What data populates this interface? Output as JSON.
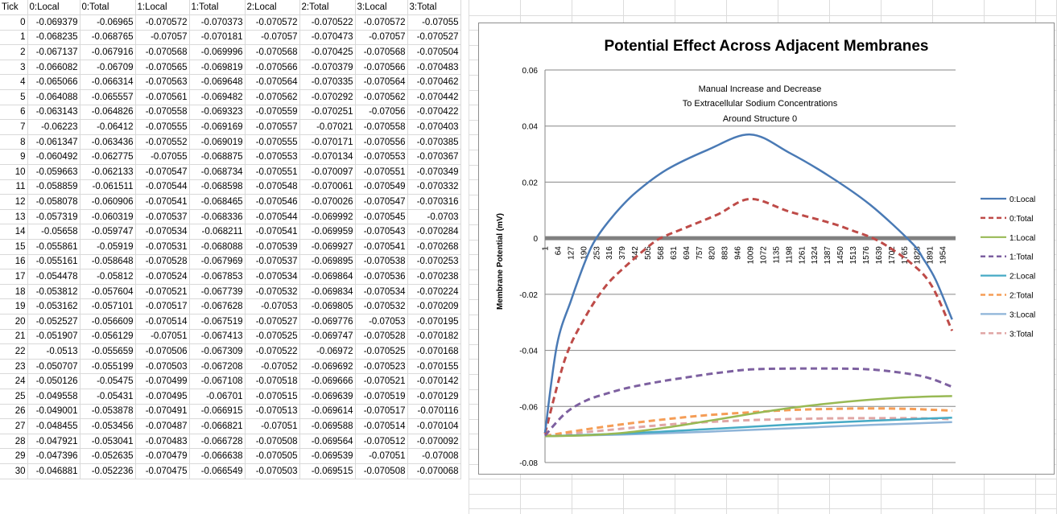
{
  "sheet": {
    "headers": [
      "Tick",
      "0:Local",
      "0:Total",
      "1:Local",
      "1:Total",
      "2:Local",
      "2:Total",
      "3:Local",
      "3:Total"
    ],
    "rows": [
      [
        "0",
        "-0.069379",
        "-0.06965",
        "-0.070572",
        "-0.070373",
        "-0.070572",
        "-0.070522",
        "-0.070572",
        "-0.07055"
      ],
      [
        "1",
        "-0.068235",
        "-0.068765",
        "-0.07057",
        "-0.070181",
        "-0.07057",
        "-0.070473",
        "-0.07057",
        "-0.070527"
      ],
      [
        "2",
        "-0.067137",
        "-0.067916",
        "-0.070568",
        "-0.069996",
        "-0.070568",
        "-0.070425",
        "-0.070568",
        "-0.070504"
      ],
      [
        "3",
        "-0.066082",
        "-0.06709",
        "-0.070565",
        "-0.069819",
        "-0.070566",
        "-0.070379",
        "-0.070566",
        "-0.070483"
      ],
      [
        "4",
        "-0.065066",
        "-0.066314",
        "-0.070563",
        "-0.069648",
        "-0.070564",
        "-0.070335",
        "-0.070564",
        "-0.070462"
      ],
      [
        "5",
        "-0.064088",
        "-0.065557",
        "-0.070561",
        "-0.069482",
        "-0.070562",
        "-0.070292",
        "-0.070562",
        "-0.070442"
      ],
      [
        "6",
        "-0.063143",
        "-0.064826",
        "-0.070558",
        "-0.069323",
        "-0.070559",
        "-0.070251",
        "-0.07056",
        "-0.070422"
      ],
      [
        "7",
        "-0.06223",
        "-0.06412",
        "-0.070555",
        "-0.069169",
        "-0.070557",
        "-0.07021",
        "-0.070558",
        "-0.070403"
      ],
      [
        "8",
        "-0.061347",
        "-0.063436",
        "-0.070552",
        "-0.069019",
        "-0.070555",
        "-0.070171",
        "-0.070556",
        "-0.070385"
      ],
      [
        "9",
        "-0.060492",
        "-0.062775",
        "-0.07055",
        "-0.068875",
        "-0.070553",
        "-0.070134",
        "-0.070553",
        "-0.070367"
      ],
      [
        "10",
        "-0.059663",
        "-0.062133",
        "-0.070547",
        "-0.068734",
        "-0.070551",
        "-0.070097",
        "-0.070551",
        "-0.070349"
      ],
      [
        "11",
        "-0.058859",
        "-0.061511",
        "-0.070544",
        "-0.068598",
        "-0.070548",
        "-0.070061",
        "-0.070549",
        "-0.070332"
      ],
      [
        "12",
        "-0.058078",
        "-0.060906",
        "-0.070541",
        "-0.068465",
        "-0.070546",
        "-0.070026",
        "-0.070547",
        "-0.070316"
      ],
      [
        "13",
        "-0.057319",
        "-0.060319",
        "-0.070537",
        "-0.068336",
        "-0.070544",
        "-0.069992",
        "-0.070545",
        "-0.0703"
      ],
      [
        "14",
        "-0.05658",
        "-0.059747",
        "-0.070534",
        "-0.068211",
        "-0.070541",
        "-0.069959",
        "-0.070543",
        "-0.070284"
      ],
      [
        "15",
        "-0.055861",
        "-0.05919",
        "-0.070531",
        "-0.068088",
        "-0.070539",
        "-0.069927",
        "-0.070541",
        "-0.070268"
      ],
      [
        "16",
        "-0.055161",
        "-0.058648",
        "-0.070528",
        "-0.067969",
        "-0.070537",
        "-0.069895",
        "-0.070538",
        "-0.070253"
      ],
      [
        "17",
        "-0.054478",
        "-0.05812",
        "-0.070524",
        "-0.067853",
        "-0.070534",
        "-0.069864",
        "-0.070536",
        "-0.070238"
      ],
      [
        "18",
        "-0.053812",
        "-0.057604",
        "-0.070521",
        "-0.067739",
        "-0.070532",
        "-0.069834",
        "-0.070534",
        "-0.070224"
      ],
      [
        "19",
        "-0.053162",
        "-0.057101",
        "-0.070517",
        "-0.067628",
        "-0.07053",
        "-0.069805",
        "-0.070532",
        "-0.070209"
      ],
      [
        "20",
        "-0.052527",
        "-0.056609",
        "-0.070514",
        "-0.067519",
        "-0.070527",
        "-0.069776",
        "-0.07053",
        "-0.070195"
      ],
      [
        "21",
        "-0.051907",
        "-0.056129",
        "-0.07051",
        "-0.067413",
        "-0.070525",
        "-0.069747",
        "-0.070528",
        "-0.070182"
      ],
      [
        "22",
        "-0.0513",
        "-0.055659",
        "-0.070506",
        "-0.067309",
        "-0.070522",
        "-0.06972",
        "-0.070525",
        "-0.070168"
      ],
      [
        "23",
        "-0.050707",
        "-0.055199",
        "-0.070503",
        "-0.067208",
        "-0.07052",
        "-0.069692",
        "-0.070523",
        "-0.070155"
      ],
      [
        "24",
        "-0.050126",
        "-0.05475",
        "-0.070499",
        "-0.067108",
        "-0.070518",
        "-0.069666",
        "-0.070521",
        "-0.070142"
      ],
      [
        "25",
        "-0.049558",
        "-0.05431",
        "-0.070495",
        "-0.06701",
        "-0.070515",
        "-0.069639",
        "-0.070519",
        "-0.070129"
      ],
      [
        "26",
        "-0.049001",
        "-0.053878",
        "-0.070491",
        "-0.066915",
        "-0.070513",
        "-0.069614",
        "-0.070517",
        "-0.070116"
      ],
      [
        "27",
        "-0.048455",
        "-0.053456",
        "-0.070487",
        "-0.066821",
        "-0.07051",
        "-0.069588",
        "-0.070514",
        "-0.070104"
      ],
      [
        "28",
        "-0.047921",
        "-0.053041",
        "-0.070483",
        "-0.066728",
        "-0.070508",
        "-0.069564",
        "-0.070512",
        "-0.070092"
      ],
      [
        "29",
        "-0.047396",
        "-0.052635",
        "-0.070479",
        "-0.066638",
        "-0.070505",
        "-0.069539",
        "-0.07051",
        "-0.07008"
      ],
      [
        "30",
        "-0.046881",
        "-0.052236",
        "-0.070475",
        "-0.066549",
        "-0.070503",
        "-0.069515",
        "-0.070508",
        "-0.070068"
      ]
    ]
  },
  "chart_data": {
    "type": "line",
    "title": "Potential Effect Across Adjacent Membranes",
    "annotation": [
      "Manual Increase and Decrease",
      "To Extracellular Sodium Concentrations",
      "Around Structure 0"
    ],
    "ylabel": "Membrane Potential (mV)",
    "xlabel": "",
    "ylim": [
      -0.08,
      0.06
    ],
    "yticks": [
      "0.06",
      "0.04",
      "0.02",
      "0",
      "-0.02",
      "-0.04",
      "-0.06",
      "-0.08"
    ],
    "xlim": [
      1,
      2017
    ],
    "xtick_labels": [
      "1",
      "64",
      "127",
      "190",
      "253",
      "316",
      "379",
      "442",
      "505",
      "568",
      "631",
      "694",
      "757",
      "820",
      "883",
      "946",
      "1009",
      "1072",
      "1135",
      "1198",
      "1261",
      "1324",
      "1387",
      "1450",
      "1513",
      "1576",
      "1639",
      "1702",
      "1765",
      "1828",
      "1891",
      "1954"
    ],
    "gridlines": "horizontal",
    "legend_position": "right",
    "series": [
      {
        "name": "0:Local",
        "color": "#4a7ab5",
        "dash": "solid",
        "x": [
          1,
          60,
          130,
          200,
          253,
          350,
          450,
          600,
          800,
          1009,
          1200,
          1400,
          1600,
          1800,
          1860,
          1920,
          2000
        ],
        "y": [
          -0.0694,
          -0.038,
          -0.022,
          -0.008,
          0.0,
          0.0092,
          0.0165,
          0.0245,
          0.0315,
          0.037,
          0.0305,
          0.022,
          0.0118,
          -0.0015,
          -0.0075,
          -0.015,
          -0.029
        ]
      },
      {
        "name": "0:Total",
        "color": "#be4b48",
        "dash": "dashed",
        "x": [
          1,
          100,
          200,
          300,
          400,
          500,
          568,
          700,
          850,
          1009,
          1200,
          1400,
          1500,
          1639,
          1800,
          1900,
          2000
        ],
        "y": [
          -0.0697,
          -0.043,
          -0.028,
          -0.017,
          -0.0098,
          -0.0035,
          0.0,
          0.004,
          0.0085,
          0.014,
          0.0095,
          0.0055,
          0.003,
          -0.001,
          -0.009,
          -0.017,
          -0.033
        ]
      },
      {
        "name": "1:Local",
        "color": "#98b954",
        "dash": "solid",
        "x": [
          1,
          200,
          400,
          600,
          800,
          1000,
          1200,
          1400,
          1600,
          1800,
          2000
        ],
        "y": [
          -0.0706,
          -0.0703,
          -0.0693,
          -0.0675,
          -0.0652,
          -0.0628,
          -0.0606,
          -0.0589,
          -0.0576,
          -0.0567,
          -0.0563
        ]
      },
      {
        "name": "1:Total",
        "color": "#7d60a0",
        "dash": "dashed",
        "x": [
          1,
          100,
          200,
          300,
          400,
          500,
          600,
          700,
          800,
          900,
          1009,
          1200,
          1400,
          1600,
          1800,
          1900,
          2000
        ],
        "y": [
          -0.0704,
          -0.0625,
          -0.058,
          -0.0555,
          -0.0535,
          -0.052,
          -0.0507,
          -0.0496,
          -0.0485,
          -0.0476,
          -0.0468,
          -0.0465,
          -0.0465,
          -0.0468,
          -0.0485,
          -0.0502,
          -0.053
        ]
      },
      {
        "name": "2:Local",
        "color": "#46aac5",
        "dash": "solid",
        "x": [
          1,
          400,
          800,
          1200,
          1600,
          2000
        ],
        "y": [
          -0.0706,
          -0.0696,
          -0.0681,
          -0.0665,
          -0.0651,
          -0.064
        ]
      },
      {
        "name": "2:Total",
        "color": "#f59d56",
        "dash": "dashed",
        "x": [
          1,
          200,
          400,
          600,
          800,
          1009,
          1200,
          1400,
          1600,
          1800,
          2000
        ],
        "y": [
          -0.0705,
          -0.0682,
          -0.0662,
          -0.0645,
          -0.0631,
          -0.0621,
          -0.0613,
          -0.0609,
          -0.0607,
          -0.0609,
          -0.0615
        ]
      },
      {
        "name": "3:Local",
        "color": "#8eb4d8",
        "dash": "solid",
        "x": [
          1,
          400,
          800,
          1200,
          1600,
          2000
        ],
        "y": [
          -0.0706,
          -0.07,
          -0.069,
          -0.0678,
          -0.0666,
          -0.0656
        ]
      },
      {
        "name": "3:Total",
        "color": "#e0a6a5",
        "dash": "dashed",
        "x": [
          1,
          300,
          600,
          900,
          1200,
          1500,
          1800,
          2000
        ],
        "y": [
          -0.0706,
          -0.0685,
          -0.0665,
          -0.0652,
          -0.0645,
          -0.0642,
          -0.0642,
          -0.0645
        ]
      }
    ]
  }
}
